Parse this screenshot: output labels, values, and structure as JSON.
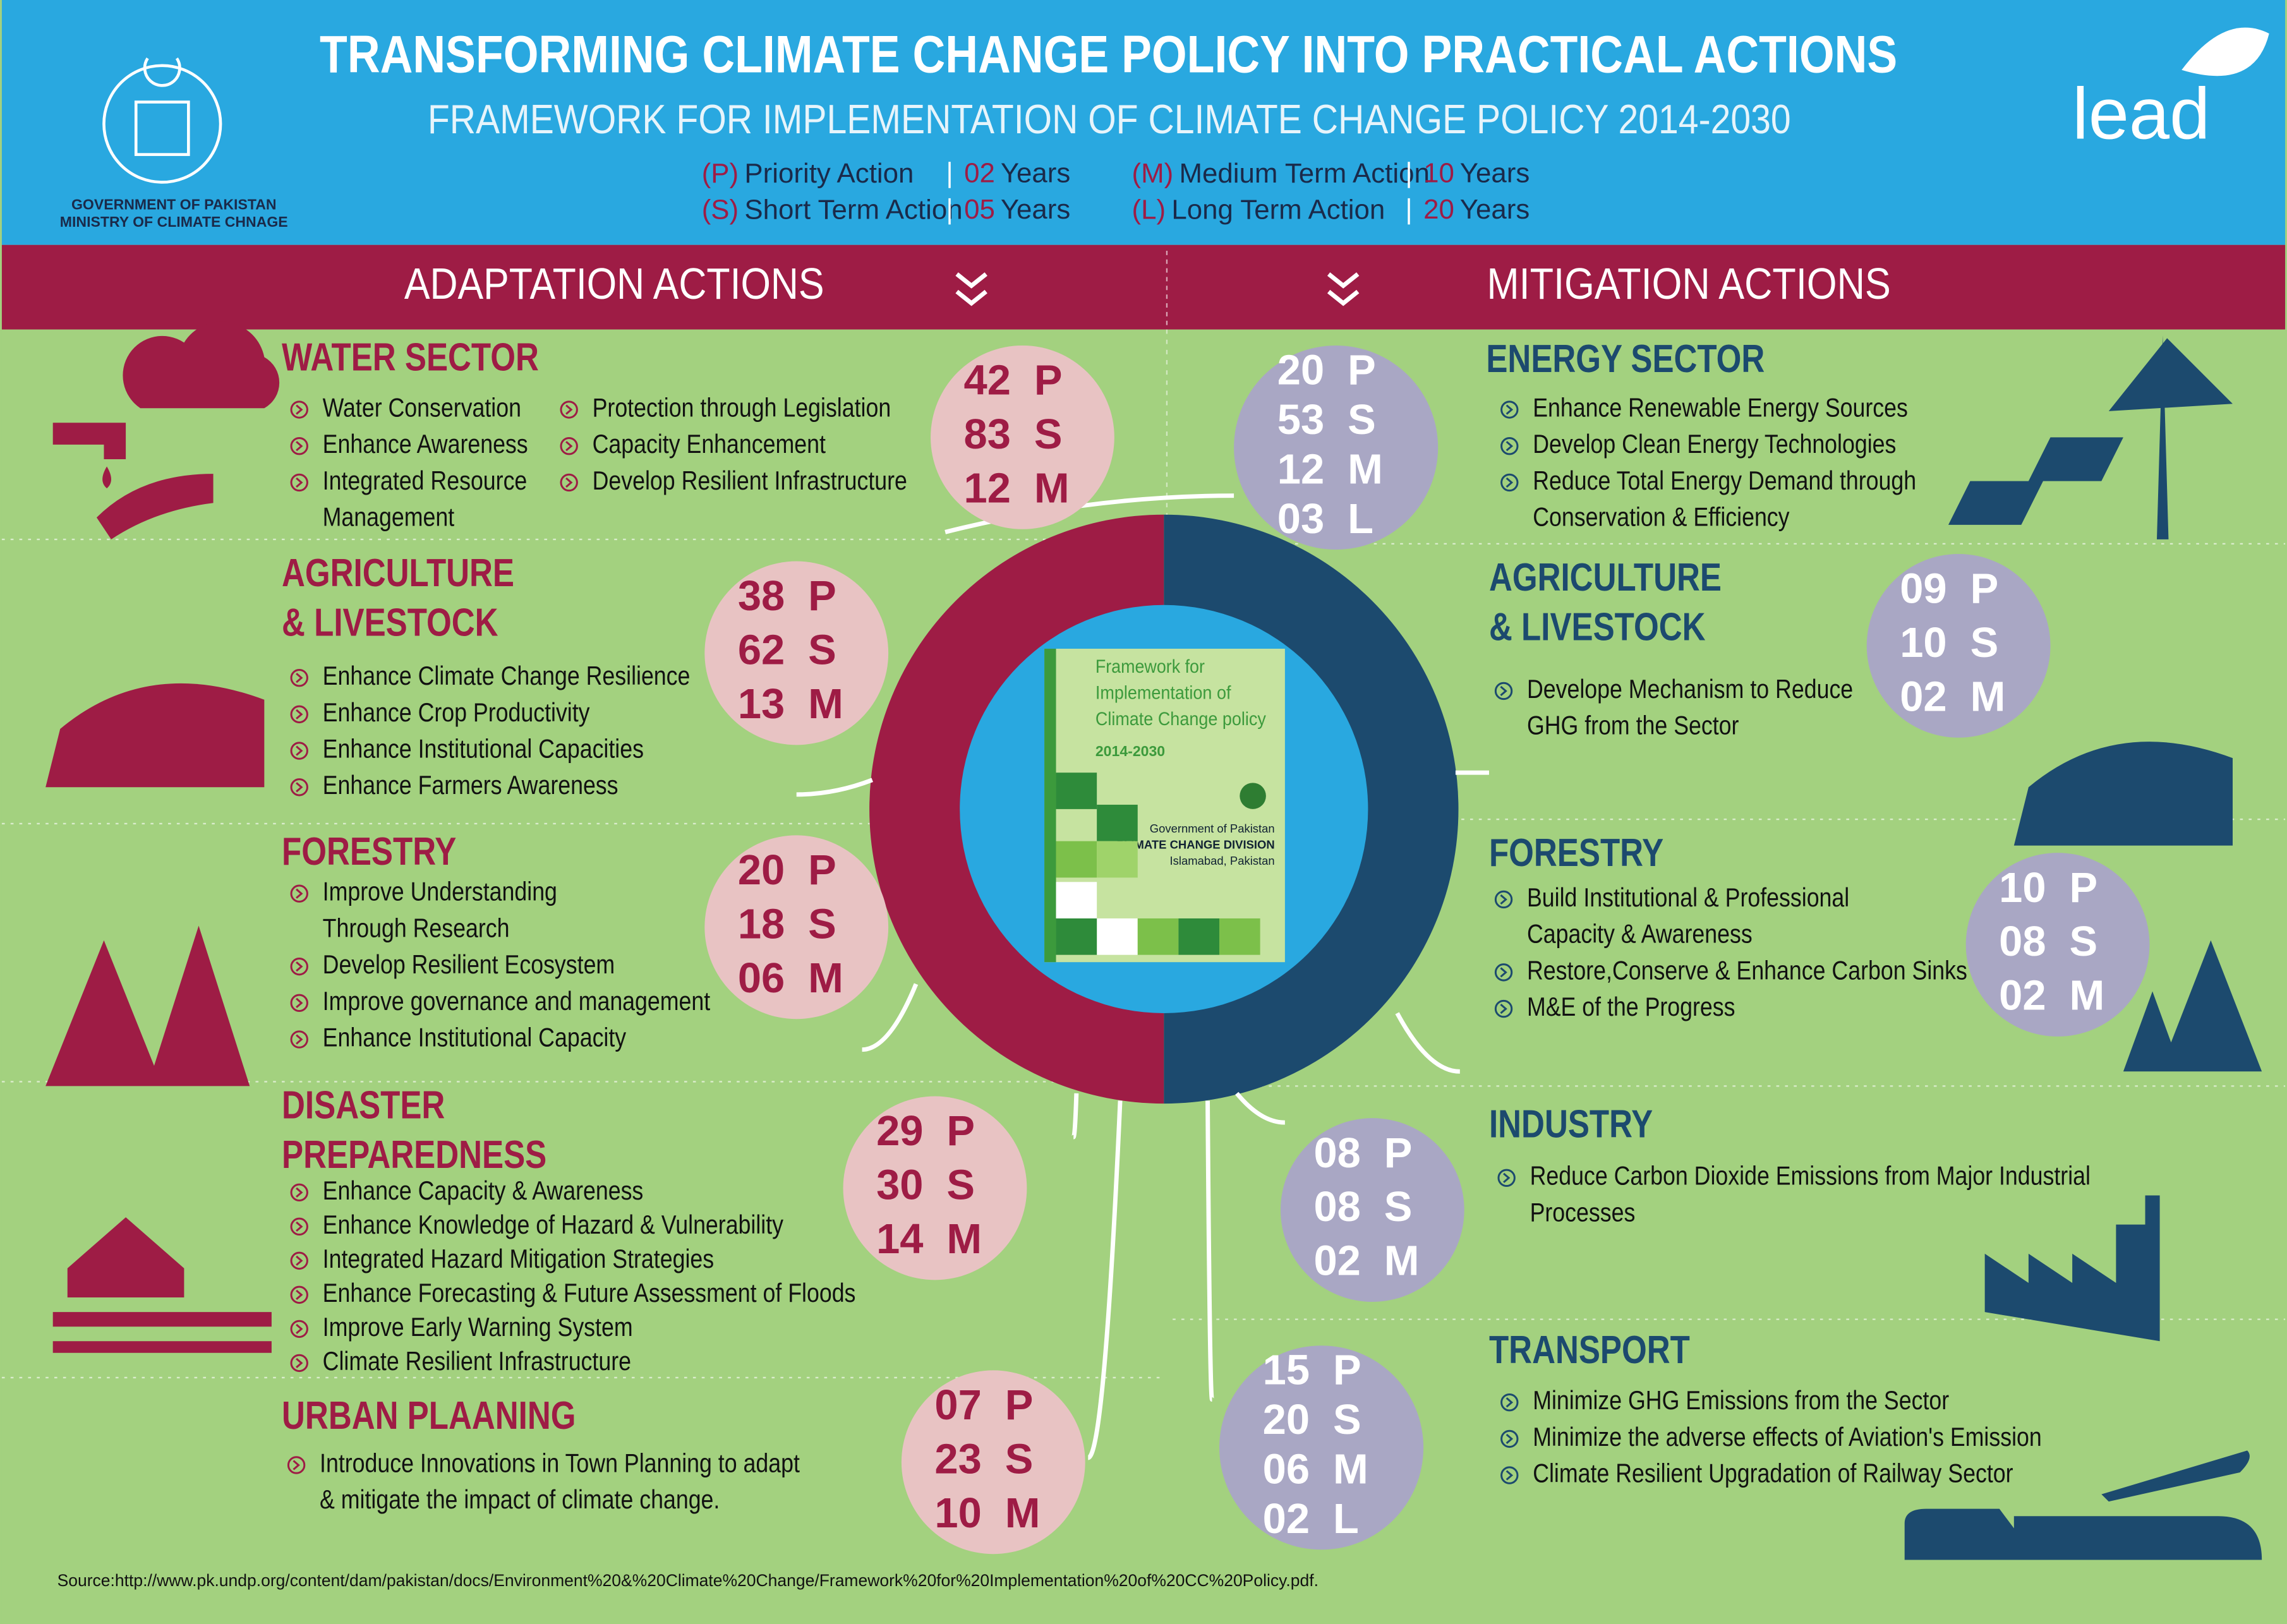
{
  "header": {
    "title": "TRANSFORMING CLIMATE CHANGE POLICY INTO PRACTICAL ACTIONS",
    "subtitle": "FRAMEWORK FOR IMPLEMENTATION OF CLIMATE CHANGE POLICY 2014-2030",
    "org": [
      "GOVERNMENT OF PAKISTAN",
      "MINISTRY OF CLIMATE CHNAGE"
    ],
    "logo": "lead"
  },
  "legend": [
    {
      "code": "(P)",
      "name": "Priority Action",
      "num": "02",
      "unit": "Years"
    },
    {
      "code": "(S)",
      "name": "Short Term Action",
      "num": "05",
      "unit": "Years"
    },
    {
      "code": "(M)",
      "name": "Medium Term Action",
      "num": "10",
      "unit": "Years"
    },
    {
      "code": "(L)",
      "name": "Long Term Action",
      "num": "20",
      "unit": "Years"
    }
  ],
  "adaptation": {
    "title": "ADAPTATION ACTIONS",
    "sectors": [
      {
        "title": [
          "WATER SECTOR"
        ],
        "columns": [
          [
            [
              "Water Conservation"
            ],
            [
              "Enhance Awareness"
            ],
            [
              "Integrated Resource",
              "Management"
            ]
          ],
          [
            [
              "Protection through Legislation"
            ],
            [
              "Capacity Enhancement"
            ],
            [
              "Develop Resilient Infrastructure"
            ]
          ]
        ],
        "counts": [
          [
            "42",
            "P"
          ],
          [
            "83",
            "S"
          ],
          [
            "12",
            "M"
          ]
        ]
      },
      {
        "title": [
          "AGRICULTURE",
          "& LIVESTOCK"
        ],
        "columns": [
          [
            [
              "Enhance Climate Change Resilience"
            ],
            [
              "Enhance Crop Productivity"
            ],
            [
              "Enhance Institutional Capacities"
            ],
            [
              "Enhance Farmers Awareness"
            ]
          ]
        ],
        "counts": [
          [
            "38",
            "P"
          ],
          [
            "62",
            "S"
          ],
          [
            "13",
            "M"
          ]
        ]
      },
      {
        "title": [
          "FORESTRY"
        ],
        "columns": [
          [
            [
              "Improve Understanding",
              "Through Research"
            ],
            [
              "Develop Resilient Ecosystem"
            ],
            [
              "Improve governance and management"
            ],
            [
              "Enhance Institutional Capacity"
            ]
          ]
        ],
        "counts": [
          [
            "20",
            "P"
          ],
          [
            "18",
            "S"
          ],
          [
            "06",
            "M"
          ]
        ]
      },
      {
        "title": [
          "DISASTER",
          "PREPAREDNESS"
        ],
        "columns": [
          [
            [
              "Enhance Capacity & Awareness"
            ],
            [
              "Enhance Knowledge of Hazard & Vulnerability"
            ],
            [
              "Integrated Hazard Mitigation Strategies"
            ],
            [
              "Enhance Forecasting & Future Assessment of Floods"
            ],
            [
              "Improve Early Warning System"
            ],
            [
              "Climate Resilient Infrastructure"
            ]
          ]
        ],
        "counts": [
          [
            "29",
            "P"
          ],
          [
            "30",
            "S"
          ],
          [
            "14",
            "M"
          ]
        ]
      },
      {
        "title": [
          "URBAN PLAANING"
        ],
        "columns": [
          [
            [
              "Introduce Innovations in Town Planning to adapt",
              "& mitigate the impact of climate change."
            ]
          ]
        ],
        "counts": [
          [
            "07",
            "P"
          ],
          [
            "23",
            "S"
          ],
          [
            "10",
            "M"
          ]
        ]
      }
    ]
  },
  "mitigation": {
    "title": "MITIGATION ACTIONS",
    "sectors": [
      {
        "title": [
          "ENERGY SECTOR"
        ],
        "columns": [
          [
            [
              "Enhance Renewable Energy Sources"
            ],
            [
              "Develop Clean Energy Technologies"
            ],
            [
              "Reduce Total Energy Demand through",
              "Conservation & Efficiency"
            ]
          ]
        ],
        "counts": [
          [
            "20",
            "P"
          ],
          [
            "53",
            "S"
          ],
          [
            "12",
            "M"
          ],
          [
            "03",
            "L"
          ]
        ]
      },
      {
        "title": [
          "AGRICULTURE",
          "& LIVESTOCK"
        ],
        "columns": [
          [
            [
              "Develope Mechanism to Reduce",
              "GHG from the Sector"
            ]
          ]
        ],
        "counts": [
          [
            "09",
            "P"
          ],
          [
            "10",
            "S"
          ],
          [
            "02",
            "M"
          ]
        ]
      },
      {
        "title": [
          "FORESTRY"
        ],
        "columns": [
          [
            [
              "Build Institutional & Professional",
              "Capacity & Awareness"
            ],
            [
              "Restore,Conserve & Enhance Carbon Sinks"
            ],
            [
              "M&E of the Progress"
            ]
          ]
        ],
        "counts": [
          [
            "10",
            "P"
          ],
          [
            "08",
            "S"
          ],
          [
            "02",
            "M"
          ]
        ]
      },
      {
        "title": [
          "INDUSTRY"
        ],
        "columns": [
          [
            [
              "Reduce Carbon Dioxide Emissions from Major Industrial",
              "Processes"
            ]
          ]
        ],
        "counts": [
          [
            "08",
            "P"
          ],
          [
            "08",
            "S"
          ],
          [
            "02",
            "M"
          ]
        ]
      },
      {
        "title": [
          "TRANSPORT"
        ],
        "columns": [
          [
            [
              "Minimize GHG Emissions from the Sector"
            ],
            [
              "Minimize the adverse effects of Aviation's Emission"
            ],
            [
              "Climate Resilient Upgradation of Railway Sector"
            ]
          ]
        ],
        "counts": [
          [
            "15",
            "P"
          ],
          [
            "20",
            "S"
          ],
          [
            "06",
            "M"
          ],
          [
            "02",
            "L"
          ]
        ]
      }
    ]
  },
  "book": {
    "title": [
      "Framework for",
      "Implementation of",
      "Climate Change policy"
    ],
    "years": "2014-2030",
    "org": [
      "Government of Pakistan",
      "CLIMATE CHANGE DIVISION",
      "Islamabad, Pakistan"
    ]
  },
  "source": "Source:http://www.pk.undp.org/content/dam/pakistan/docs/Environment%20&%20Climate%20Change/Framework%20for%20Implementation%20of%20CC%20Policy.pdf."
}
